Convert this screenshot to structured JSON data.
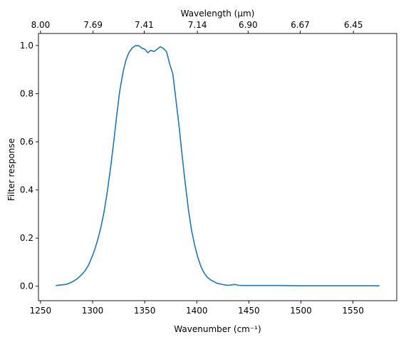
{
  "chart_data": {
    "type": "line",
    "xlabel": "Wavenumber (cm⁻¹)",
    "ylabel": "Filter response",
    "top_xlabel": "Wavelength (μm)",
    "xlim": [
      1248,
      1592
    ],
    "ylim": [
      -0.06,
      1.05
    ],
    "grid": false,
    "x_ticks": [
      1250,
      1300,
      1350,
      1400,
      1450,
      1500,
      1550
    ],
    "x_tick_labels": [
      "1250",
      "1300",
      "1350",
      "1400",
      "1450",
      "1500",
      "1550"
    ],
    "y_ticks": [
      0.0,
      0.2,
      0.4,
      0.6,
      0.8,
      1.0
    ],
    "y_tick_labels": [
      "0.0",
      "0.2",
      "0.4",
      "0.6",
      "0.8",
      "1.0"
    ],
    "top_ticks": [
      {
        "wavenumber": 1250.0,
        "label": "8.00"
      },
      {
        "wavenumber": 1300.4,
        "label": "7.69"
      },
      {
        "wavenumber": 1349.5,
        "label": "7.41"
      },
      {
        "wavenumber": 1400.6,
        "label": "7.14"
      },
      {
        "wavenumber": 1449.3,
        "label": "6.90"
      },
      {
        "wavenumber": 1499.3,
        "label": "6.67"
      },
      {
        "wavenumber": 1550.4,
        "label": "6.45"
      }
    ],
    "series": [
      {
        "color": "#1f77b4",
        "x": [
          1265,
          1275,
          1280,
          1285,
          1290,
          1293,
          1296,
          1299,
          1302,
          1305,
          1308,
          1311,
          1314,
          1317,
          1320,
          1323,
          1326,
          1329,
          1332,
          1335,
          1338,
          1341,
          1344,
          1347,
          1350,
          1353,
          1356,
          1359,
          1362,
          1365,
          1368,
          1371,
          1374,
          1377,
          1380,
          1383,
          1386,
          1389,
          1392,
          1395,
          1398,
          1401,
          1404,
          1407,
          1410,
          1413,
          1416,
          1419,
          1422,
          1425,
          1428,
          1431,
          1434,
          1437,
          1440,
          1443,
          1446,
          1449,
          1452,
          1455,
          1458,
          1461,
          1464,
          1467,
          1470,
          1480,
          1500,
          1525,
          1550,
          1575
        ],
        "y": [
          0.003,
          0.008,
          0.017,
          0.03,
          0.05,
          0.066,
          0.087,
          0.117,
          0.152,
          0.195,
          0.245,
          0.31,
          0.39,
          0.485,
          0.59,
          0.705,
          0.81,
          0.885,
          0.94,
          0.972,
          0.99,
          0.999,
          1.0,
          0.99,
          0.985,
          0.97,
          0.98,
          0.975,
          0.985,
          0.995,
          0.988,
          0.974,
          0.923,
          0.882,
          0.775,
          0.665,
          0.54,
          0.425,
          0.318,
          0.232,
          0.17,
          0.12,
          0.082,
          0.055,
          0.038,
          0.027,
          0.02,
          0.013,
          0.01,
          0.007,
          0.005,
          0.004,
          0.006,
          0.007,
          0.004,
          0.003,
          0.003,
          0.003,
          0.003,
          0.003,
          0.003,
          0.003,
          0.003,
          0.003,
          0.003,
          0.003,
          0.002,
          0.002,
          0.002,
          0.002
        ]
      }
    ]
  }
}
